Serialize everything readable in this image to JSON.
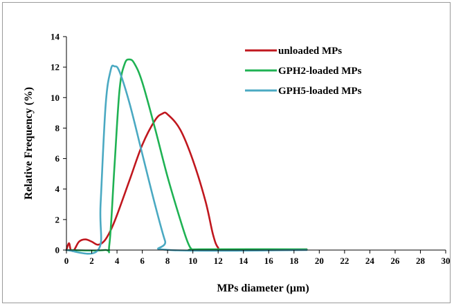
{
  "chart_data": {
    "type": "line",
    "title": "",
    "xlabel": "MPs diameter (µm)",
    "ylabel": "Relative Frequency (%)",
    "xlim": [
      0,
      30
    ],
    "ylim": [
      0,
      14
    ],
    "x_ticks": [
      "0",
      "2",
      "4",
      "6",
      "8",
      "10",
      "12",
      "14",
      "16",
      "18",
      "20",
      "22",
      "24",
      "26",
      "28",
      "30"
    ],
    "y_ticks": [
      "0",
      "2",
      "4",
      "6",
      "8",
      "10",
      "12",
      "14"
    ],
    "grid": false,
    "legend_position": "top-right",
    "series": [
      {
        "name": "unloaded MPs",
        "color": "#c0171e",
        "points": [
          [
            0.0,
            0.0
          ],
          [
            0.2,
            0.45
          ],
          [
            0.35,
            0.0
          ],
          [
            0.6,
            0.0
          ],
          [
            1.0,
            0.55
          ],
          [
            1.5,
            0.7
          ],
          [
            2.0,
            0.55
          ],
          [
            2.5,
            0.35
          ],
          [
            3.0,
            0.6
          ],
          [
            3.5,
            1.3
          ],
          [
            4.0,
            2.3
          ],
          [
            5.0,
            4.6
          ],
          [
            6.0,
            6.9
          ],
          [
            7.0,
            8.5
          ],
          [
            7.6,
            8.95
          ],
          [
            8.0,
            8.9
          ],
          [
            9.0,
            7.9
          ],
          [
            10.0,
            5.9
          ],
          [
            11.0,
            3.2
          ],
          [
            11.6,
            1.0
          ],
          [
            12.0,
            0.15
          ],
          [
            12.5,
            0.0
          ],
          [
            19.0,
            0.05
          ]
        ]
      },
      {
        "name": "GPH2-loaded MPs",
        "color": "#1fb253",
        "points": [
          [
            0.0,
            0.0
          ],
          [
            3.0,
            0.0
          ],
          [
            3.4,
            0.4
          ],
          [
            3.8,
            5.5
          ],
          [
            4.2,
            10.5
          ],
          [
            4.6,
            12.2
          ],
          [
            5.0,
            12.5
          ],
          [
            5.4,
            12.2
          ],
          [
            6.0,
            11.0
          ],
          [
            7.0,
            8.0
          ],
          [
            8.0,
            4.8
          ],
          [
            9.0,
            2.0
          ],
          [
            9.6,
            0.5
          ],
          [
            10.0,
            0.0
          ],
          [
            10.5,
            0.05
          ],
          [
            19.0,
            0.05
          ]
        ]
      },
      {
        "name": "GPH5-loaded MPs",
        "color": "#4aa9c2",
        "points": [
          [
            0.0,
            0.0
          ],
          [
            2.5,
            0.0
          ],
          [
            2.7,
            3.0
          ],
          [
            3.1,
            9.5
          ],
          [
            3.5,
            11.8
          ],
          [
            3.8,
            12.05
          ],
          [
            4.2,
            11.7
          ],
          [
            5.0,
            9.6
          ],
          [
            6.0,
            6.3
          ],
          [
            7.0,
            3.0
          ],
          [
            7.8,
            0.6
          ],
          [
            8.2,
            0.0
          ],
          [
            19.0,
            0.0
          ]
        ]
      }
    ]
  }
}
